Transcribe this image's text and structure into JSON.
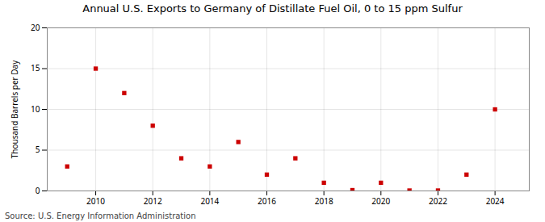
{
  "chart_data": {
    "type": "scatter",
    "title": "Annual U.S. Exports to Germany of Distillate Fuel Oil, 0 to 15 ppm Sulfur",
    "ylabel": "Thousand Barrels per Day",
    "source": "Source: U.S. Energy Information Administration",
    "x": [
      2009,
      2010,
      2011,
      2012,
      2013,
      2014,
      2015,
      2016,
      2017,
      2018,
      2019,
      2020,
      2021,
      2022,
      2023,
      2024
    ],
    "values": [
      3.0,
      15.0,
      12.0,
      8.0,
      4.0,
      3.0,
      6.0,
      2.0,
      4.0,
      1.0,
      0.1,
      1.0,
      0.05,
      0.05,
      2.0,
      10.0
    ],
    "color": "#cc0000",
    "marker": "square",
    "xlim": [
      2008.3,
      2025.2
    ],
    "xticks": [
      2010,
      2012,
      2014,
      2016,
      2018,
      2020,
      2022,
      2024
    ],
    "ylim": [
      0,
      20
    ],
    "yticks": [
      0,
      5,
      10,
      15,
      20
    ],
    "grid": true
  }
}
